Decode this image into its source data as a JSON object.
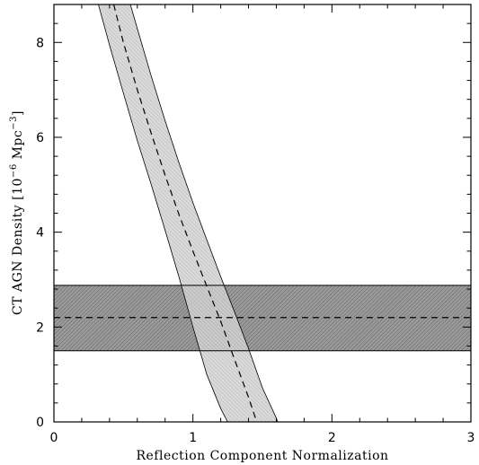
{
  "chart_data": {
    "type": "line",
    "title": "",
    "xlabel": "Reflection Component Normalization",
    "ylabel": "CT AGN Density [10",
    "ylabel_exp1": "−6",
    "ylabel_mid": " Mpc",
    "ylabel_exp2": "−3",
    "ylabel_end": "]",
    "xlim": [
      0,
      3
    ],
    "ylim": [
      0,
      8.8
    ],
    "x_ticks": [
      {
        "value": 0,
        "label": "0"
      },
      {
        "value": 1,
        "label": "1"
      },
      {
        "value": 2,
        "label": "2"
      },
      {
        "value": 3,
        "label": "3"
      }
    ],
    "y_ticks": [
      {
        "value": 0,
        "label": "0"
      },
      {
        "value": 2,
        "label": "2"
      },
      {
        "value": 4,
        "label": "4"
      },
      {
        "value": 6,
        "label": "6"
      },
      {
        "value": 8,
        "label": "8"
      }
    ],
    "x_minor_step": 0.2,
    "y_minor_step": 0.4,
    "grid": false,
    "series": [
      {
        "kind": "horizontal-band",
        "center": 2.2,
        "lower": 1.5,
        "upper": 2.88,
        "fill": "#8a8a8a"
      },
      {
        "kind": "curved-band",
        "fill": "#c4c4c4",
        "center": [
          {
            "x": 0.43,
            "y": 8.8
          },
          {
            "x": 0.5,
            "y": 8.0
          },
          {
            "x": 0.6,
            "y": 7.0
          },
          {
            "x": 0.7,
            "y": 6.08
          },
          {
            "x": 0.8,
            "y": 5.2
          },
          {
            "x": 0.9,
            "y": 4.37
          },
          {
            "x": 1.0,
            "y": 3.6
          },
          {
            "x": 1.1,
            "y": 2.86
          },
          {
            "x": 1.2,
            "y": 2.12
          },
          {
            "x": 1.3,
            "y": 1.31
          },
          {
            "x": 1.4,
            "y": 0.52
          },
          {
            "x": 1.45,
            "y": 0.08
          }
        ],
        "lower": [
          {
            "x": 0.32,
            "y": 8.8
          },
          {
            "x": 0.4,
            "y": 7.94
          },
          {
            "x": 0.5,
            "y": 6.93
          },
          {
            "x": 0.6,
            "y": 5.93
          },
          {
            "x": 0.7,
            "y": 5.0
          },
          {
            "x": 0.8,
            "y": 4.04
          },
          {
            "x": 0.9,
            "y": 3.05
          },
          {
            "x": 1.0,
            "y": 2.0
          },
          {
            "x": 1.1,
            "y": 1.0
          },
          {
            "x": 1.2,
            "y": 0.28
          },
          {
            "x": 1.25,
            "y": 0.0
          }
        ],
        "upper": [
          {
            "x": 0.55,
            "y": 8.8
          },
          {
            "x": 0.6,
            "y": 8.29
          },
          {
            "x": 0.7,
            "y": 7.29
          },
          {
            "x": 0.8,
            "y": 6.35
          },
          {
            "x": 0.9,
            "y": 5.46
          },
          {
            "x": 1.0,
            "y": 4.62
          },
          {
            "x": 1.1,
            "y": 3.84
          },
          {
            "x": 1.2,
            "y": 3.06
          },
          {
            "x": 1.3,
            "y": 2.31
          },
          {
            "x": 1.4,
            "y": 1.55
          },
          {
            "x": 1.5,
            "y": 0.72
          },
          {
            "x": 1.6,
            "y": 0.08
          },
          {
            "x": 1.61,
            "y": 0.0
          }
        ]
      }
    ]
  }
}
